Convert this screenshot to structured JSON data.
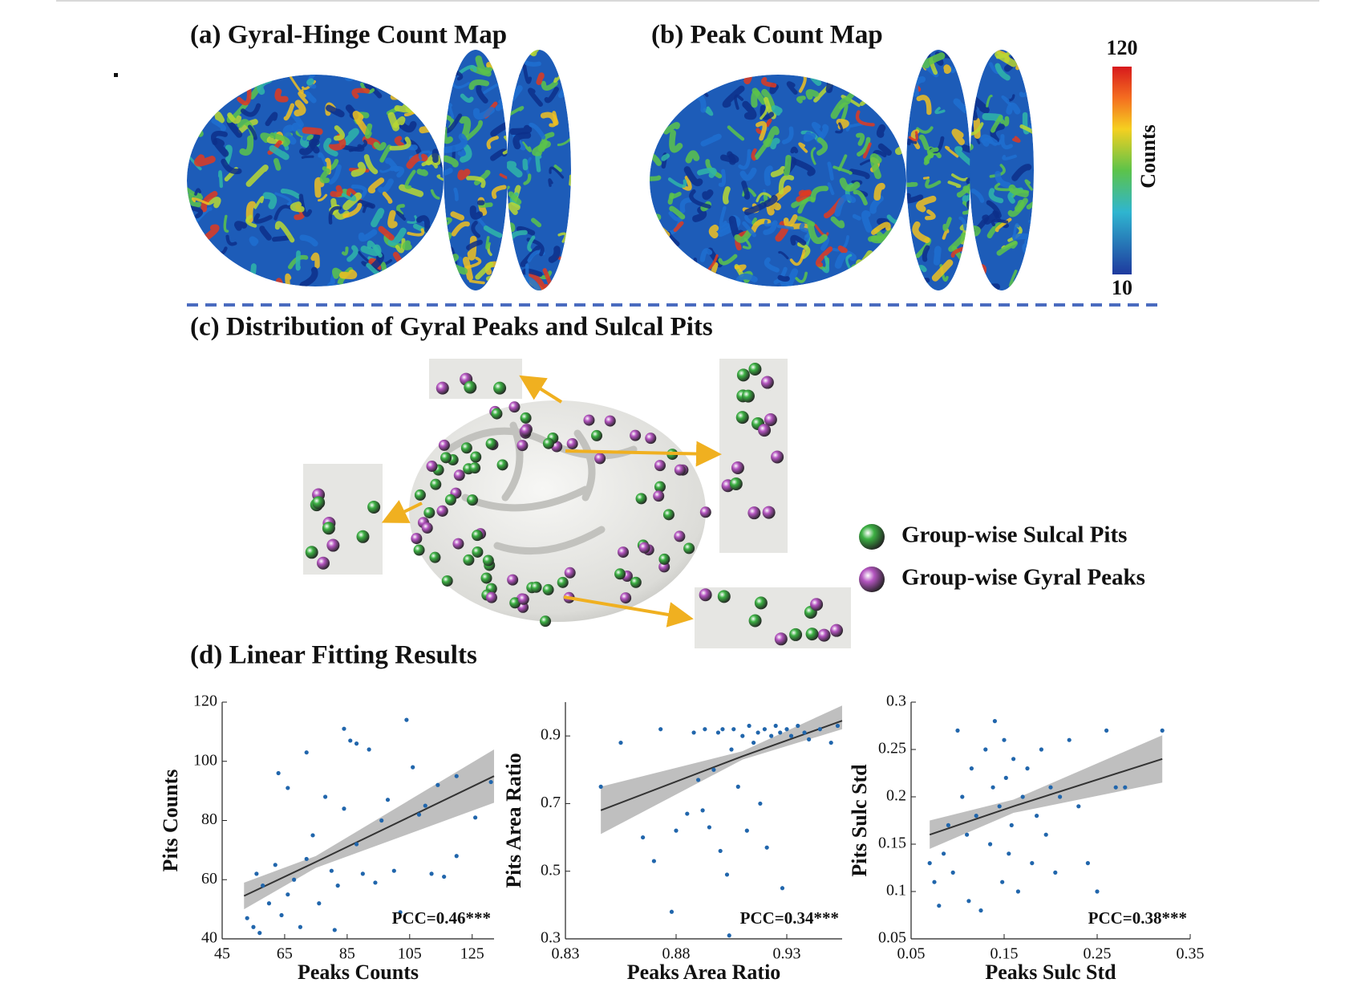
{
  "panels": {
    "a": {
      "title": "(a) Gyral-Hinge Count Map"
    },
    "b": {
      "title": "(b) Peak Count Map"
    },
    "c": {
      "title": "(c) Distribution of Gyral Peaks and Sulcal Pits"
    },
    "d": {
      "title": "(d) Linear Fitting Results"
    }
  },
  "colorbar": {
    "label": "Counts",
    "max": 120,
    "min": 10
  },
  "legend": [
    {
      "label": "Group-wise Sulcal Pits",
      "color": "#3cb043"
    },
    {
      "label": "Group-wise Gyral Peaks",
      "color": "#b455c0"
    }
  ],
  "chart_data": [
    {
      "type": "scatter",
      "xlabel": "Peaks Counts",
      "ylabel": "Pits Counts",
      "annotation": "PCC=0.46***",
      "xlim": [
        45,
        132
      ],
      "ylim": [
        40,
        120
      ],
      "xticks": [
        45,
        65,
        85,
        105,
        125
      ],
      "yticks": [
        40,
        60,
        80,
        100,
        120
      ],
      "color": "#2166ac",
      "x": [
        53,
        55,
        56,
        58,
        60,
        62,
        64,
        66,
        68,
        70,
        72,
        74,
        76,
        78,
        80,
        82,
        84,
        86,
        88,
        90,
        92,
        94,
        96,
        98,
        100,
        102,
        104,
        106,
        108,
        110,
        112,
        114,
        116,
        120,
        120,
        126,
        131,
        57,
        63,
        66,
        72,
        84,
        88,
        81
      ],
      "values": [
        47,
        44,
        62,
        58,
        52,
        65,
        48,
        55,
        60,
        44,
        67,
        75,
        52,
        88,
        63,
        58,
        84,
        107,
        72,
        62,
        104,
        59,
        80,
        87,
        63,
        49,
        114,
        98,
        82,
        85,
        62,
        92,
        61,
        95,
        68,
        81,
        93,
        42,
        96,
        91,
        103,
        111,
        106,
        43
      ],
      "fit": {
        "color": "#333333",
        "band_color": "#bfbfbf",
        "x": [
          52,
          75,
          132
        ],
        "y": [
          54.5,
          66,
          95
        ],
        "lower": [
          50,
          64,
          86
        ],
        "upper": [
          59,
          68,
          104
        ]
      }
    },
    {
      "type": "scatter",
      "xlabel": "Peaks Area Ratio",
      "ylabel": "Pits Area Ratio",
      "annotation": "PCC=0.34***",
      "xlim": [
        0.83,
        0.955
      ],
      "ylim": [
        0.3,
        1.0
      ],
      "xticks": [
        0.83,
        0.88,
        0.93
      ],
      "yticks": [
        0.3,
        0.5,
        0.7,
        0.9
      ],
      "color": "#2166ac",
      "x": [
        0.846,
        0.855,
        0.865,
        0.87,
        0.873,
        0.878,
        0.88,
        0.885,
        0.888,
        0.89,
        0.893,
        0.895,
        0.897,
        0.899,
        0.9,
        0.901,
        0.903,
        0.905,
        0.906,
        0.908,
        0.91,
        0.912,
        0.913,
        0.915,
        0.917,
        0.918,
        0.92,
        0.921,
        0.923,
        0.925,
        0.927,
        0.928,
        0.93,
        0.932,
        0.935,
        0.938,
        0.94,
        0.945,
        0.95,
        0.953,
        0.904,
        0.892
      ],
      "values": [
        0.75,
        0.88,
        0.6,
        0.53,
        0.92,
        0.38,
        0.62,
        0.67,
        0.91,
        0.77,
        0.92,
        0.63,
        0.8,
        0.91,
        0.56,
        0.92,
        0.49,
        0.86,
        0.92,
        0.75,
        0.9,
        0.62,
        0.93,
        0.88,
        0.91,
        0.7,
        0.92,
        0.57,
        0.9,
        0.93,
        0.91,
        0.45,
        0.92,
        0.9,
        0.93,
        0.91,
        0.89,
        0.92,
        0.88,
        0.93,
        0.31,
        0.68
      ],
      "fit": {
        "color": "#333333",
        "band_color": "#bfbfbf",
        "x": [
          0.846,
          0.91,
          0.955
        ],
        "y": [
          0.68,
          0.84,
          0.945
        ],
        "lower": [
          0.61,
          0.83,
          0.92
        ],
        "upper": [
          0.75,
          0.855,
          0.99
        ]
      }
    },
    {
      "type": "scatter",
      "xlabel": "Peaks Sulc Std",
      "ylabel": "Pits Sulc Std",
      "annotation": "PCC=0.38***",
      "xlim": [
        0.05,
        0.35
      ],
      "ylim": [
        0.05,
        0.3
      ],
      "xticks": [
        0.05,
        0.15,
        0.25,
        0.35
      ],
      "yticks": [
        0.05,
        0.1,
        0.15,
        0.2,
        0.25,
        0.3
      ],
      "color": "#2166ac",
      "x": [
        0.07,
        0.075,
        0.08,
        0.085,
        0.09,
        0.095,
        0.1,
        0.105,
        0.11,
        0.112,
        0.115,
        0.12,
        0.125,
        0.13,
        0.135,
        0.138,
        0.14,
        0.145,
        0.148,
        0.15,
        0.152,
        0.155,
        0.158,
        0.16,
        0.165,
        0.17,
        0.175,
        0.18,
        0.185,
        0.19,
        0.195,
        0.2,
        0.205,
        0.21,
        0.22,
        0.23,
        0.24,
        0.25,
        0.26,
        0.27,
        0.28,
        0.32
      ],
      "values": [
        0.13,
        0.11,
        0.085,
        0.14,
        0.17,
        0.12,
        0.27,
        0.2,
        0.16,
        0.09,
        0.23,
        0.18,
        0.08,
        0.25,
        0.15,
        0.21,
        0.28,
        0.19,
        0.11,
        0.26,
        0.22,
        0.14,
        0.17,
        0.24,
        0.1,
        0.2,
        0.23,
        0.13,
        0.18,
        0.25,
        0.16,
        0.21,
        0.12,
        0.2,
        0.26,
        0.19,
        0.13,
        0.1,
        0.27,
        0.21,
        0.21,
        0.27
      ],
      "fit": {
        "color": "#333333",
        "band_color": "#bfbfbf",
        "x": [
          0.07,
          0.16,
          0.32
        ],
        "y": [
          0.16,
          0.19,
          0.24
        ],
        "lower": [
          0.145,
          0.183,
          0.215
        ],
        "upper": [
          0.175,
          0.197,
          0.265
        ]
      }
    }
  ]
}
